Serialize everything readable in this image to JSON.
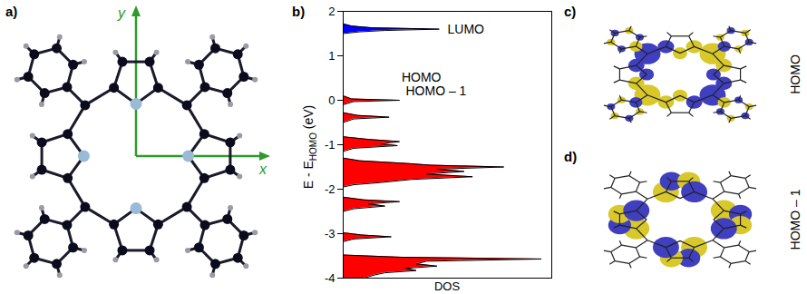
{
  "chart_data": {
    "type": "area",
    "letter": "b)",
    "y_label": {
      "main": "E - E",
      "sub": "HOMO",
      "unit": "(eV)"
    },
    "x_label": "DOS",
    "orientation": "horizontal",
    "xlim": [
      0,
      1
    ],
    "ylim": [
      -4,
      2
    ],
    "yticks": [
      -4,
      -3,
      -2,
      -1,
      0,
      1,
      2
    ],
    "tick_labels": "y",
    "series": [
      {
        "color": "#ff0000",
        "x": [
          0.1,
          0.03,
          0,
          -0.03,
          -0.1,
          -0.28,
          -0.34,
          -0.38,
          -0.42,
          -0.5,
          -0.82,
          -0.88,
          -0.93,
          -0.98,
          -1.02,
          -1.08,
          -1.15,
          -1.3,
          -1.36,
          -1.42,
          -1.46,
          -1.5,
          -1.55,
          -1.6,
          -1.66,
          -1.72,
          -1.78,
          -1.85,
          -1.9,
          -1.95,
          -2.18,
          -2.24,
          -2.28,
          -2.33,
          -2.38,
          -2.44,
          -2.5,
          -2.98,
          -3.03,
          -3.07,
          -3.12,
          -3.18,
          -3.48,
          -3.53,
          -3.57,
          -3.62,
          -3.68,
          -3.73,
          -3.78,
          -3.83,
          -3.88,
          -3.93,
          -4
        ],
        "values": [
          0,
          0.04,
          0.27,
          0.05,
          0,
          0,
          0.07,
          0.22,
          0.05,
          0,
          0,
          0.12,
          0.27,
          0.18,
          0.26,
          0.05,
          0,
          0,
          0.08,
          0.3,
          0.42,
          0.77,
          0.45,
          0.58,
          0.4,
          0.62,
          0.33,
          0.18,
          0.05,
          0,
          0,
          0.1,
          0.27,
          0.12,
          0.2,
          0.05,
          0,
          0,
          0.09,
          0.23,
          0.05,
          0,
          0,
          0.28,
          0.95,
          0.4,
          0.35,
          0.45,
          0.3,
          0.35,
          0.2,
          0.15,
          0.1
        ]
      },
      {
        "color": "#0000ff",
        "x": [
          1.5,
          1.54,
          1.57,
          1.6,
          1.63,
          1.67,
          1.72
        ],
        "values": [
          0,
          0.08,
          0.2,
          0.46,
          0.14,
          0.04,
          0
        ]
      }
    ],
    "annotations": [
      {
        "text": "LUMO",
        "x": 1.6,
        "value": 0.5
      },
      {
        "text": "HOMO",
        "x": 0.5,
        "value": 0.28
      },
      {
        "text": "HOMO – 1",
        "x": 0.2,
        "value": 0.3
      }
    ]
  },
  "panels": {
    "a": {
      "letter": "a)",
      "axes": [
        "x",
        "y"
      ]
    },
    "c": {
      "letter": "c)",
      "label": "HOMO"
    },
    "d": {
      "letter": "d)",
      "label": "HOMO – 1"
    }
  }
}
